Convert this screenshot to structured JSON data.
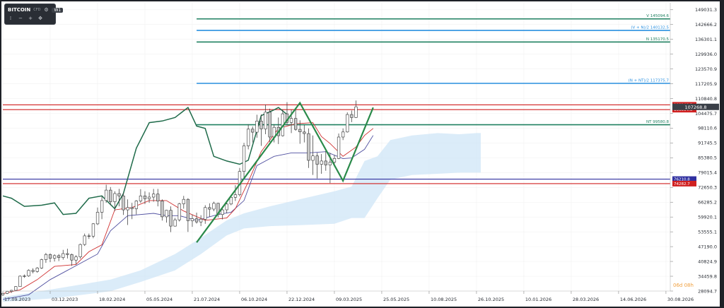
{
  "toolbar": {
    "symbol": "BITCOIN",
    "exchange": "CFD",
    "interval": "W1",
    "icons": [
      "menu-icon",
      "zoom-out-icon",
      "zoom-in-icon",
      "crosshair-icon"
    ]
  },
  "colors": {
    "bull": "#ffffff",
    "bear": "#c8c8c8",
    "wick": "#444444",
    "tenkan": "#d03030",
    "kijun": "#5050a0",
    "chikou": "#1f6b4a",
    "cloud": "#cfe6f7",
    "green_lvl": "#1f8060",
    "blue_lvl": "#2a90e0",
    "red_lvl": "#d02020",
    "navy_lvl": "#3030a0",
    "pattern": "#2a8a4a"
  },
  "chart_data": {
    "type": "candlestick",
    "symbol": "BITCOIN",
    "interval": "W1",
    "ylim": [
      28094.7,
      152000
    ],
    "y_ticks": [
      "149031.3",
      "142666.2",
      "136301.1",
      "129936.0",
      "123570.9",
      "117205.9",
      "110840.8",
      "104475.7",
      "98110.6",
      "91745.5",
      "85380.5",
      "79015.4",
      "72650.3",
      "66285.2",
      "59920.1",
      "53555.1",
      "47190.0",
      "40824.9",
      "34459.8",
      "28094.7"
    ],
    "x_ticks": [
      {
        "t": 0,
        "label": "17.09.2023"
      },
      {
        "t": 11,
        "label": "03.12.2023"
      },
      {
        "t": 22,
        "label": "18.02.2024"
      },
      {
        "t": 33,
        "label": "05.05.2024"
      },
      {
        "t": 44,
        "label": "21.07.2024"
      },
      {
        "t": 55,
        "label": "06.10.2024"
      },
      {
        "t": 66,
        "label": "22.12.2024"
      },
      {
        "t": 77,
        "label": "09.03.2025"
      },
      {
        "t": 88,
        "label": "25.05.2025"
      },
      {
        "t": 99,
        "label": "10.08.2025"
      },
      {
        "t": 110,
        "label": "26.10.2025"
      },
      {
        "t": 121,
        "label": "10.01.2026"
      },
      {
        "t": 132,
        "label": "28.03.2026"
      },
      {
        "t": 143,
        "label": "14.06.2026"
      },
      {
        "t": 154,
        "label": "30.08.2026"
      }
    ],
    "t_range": [
      0,
      155
    ],
    "candles": [
      [
        26500,
        27400,
        26100,
        27100
      ],
      [
        27100,
        28200,
        26800,
        27950
      ],
      [
        27950,
        28600,
        27300,
        28400
      ],
      [
        28400,
        30200,
        28100,
        30000
      ],
      [
        30000,
        34800,
        29900,
        34500
      ],
      [
        34500,
        35200,
        33800,
        34600
      ],
      [
        34600,
        37400,
        34200,
        37000
      ],
      [
        37000,
        37900,
        35700,
        36500
      ],
      [
        36500,
        38400,
        36000,
        38000
      ],
      [
        38000,
        42000,
        37600,
        41600
      ],
      [
        41600,
        44500,
        40200,
        43800
      ],
      [
        43800,
        44300,
        40500,
        42200
      ],
      [
        42200,
        43900,
        40800,
        43300
      ],
      [
        43300,
        44000,
        41000,
        42500
      ],
      [
        42500,
        45800,
        41600,
        44200
      ],
      [
        44200,
        46300,
        42100,
        43800
      ],
      [
        43800,
        44200,
        38900,
        41400
      ],
      [
        41400,
        43500,
        39500,
        42800
      ],
      [
        42800,
        48500,
        42000,
        48100
      ],
      [
        48100,
        52800,
        47500,
        51800
      ],
      [
        51800,
        52800,
        50500,
        51700
      ],
      [
        51700,
        57300,
        50800,
        57000
      ],
      [
        57000,
        64000,
        56500,
        62000
      ],
      [
        62000,
        69000,
        59000,
        67000
      ],
      [
        67000,
        73800,
        66000,
        71500
      ],
      [
        71500,
        72800,
        65000,
        66500
      ],
      [
        66500,
        71000,
        62500,
        70000
      ],
      [
        70000,
        72000,
        64500,
        69000
      ],
      [
        69000,
        70300,
        60800,
        63000
      ],
      [
        63000,
        67500,
        56500,
        64000
      ],
      [
        64000,
        66000,
        59000,
        63500
      ],
      [
        63500,
        67200,
        61000,
        66800
      ],
      [
        66800,
        71900,
        66000,
        69000
      ],
      [
        69000,
        71000,
        65500,
        67800
      ],
      [
        67800,
        70500,
        66000,
        68500
      ],
      [
        68500,
        72000,
        66500,
        69800
      ],
      [
        69800,
        72000,
        64500,
        66800
      ],
      [
        66800,
        67500,
        58400,
        60000
      ],
      [
        60000,
        63000,
        57500,
        62800
      ],
      [
        62800,
        64500,
        53400,
        56000
      ],
      [
        56000,
        59500,
        55800,
        58700
      ],
      [
        58700,
        66000,
        58000,
        65600
      ],
      [
        65600,
        69000,
        63500,
        67500
      ],
      [
        67500,
        68000,
        53500,
        58300
      ],
      [
        58300,
        61000,
        55700,
        59200
      ],
      [
        59200,
        61800,
        57100,
        57800
      ],
      [
        57800,
        60700,
        56000,
        59000
      ],
      [
        59000,
        65000,
        57000,
        64000
      ],
      [
        64000,
        65800,
        60000,
        63300
      ],
      [
        63300,
        66500,
        62400,
        65800
      ],
      [
        65800,
        66000,
        59800,
        61000
      ],
      [
        61000,
        64500,
        58900,
        63000
      ],
      [
        63000,
        66000,
        61500,
        65500
      ],
      [
        65500,
        69500,
        65000,
        68400
      ],
      [
        68400,
        73600,
        66800,
        69500
      ],
      [
        69500,
        81000,
        68800,
        79500
      ],
      [
        79500,
        91800,
        76500,
        90500
      ],
      [
        90500,
        99800,
        89000,
        97700
      ],
      [
        97700,
        98800,
        92000,
        96400
      ],
      [
        96400,
        103900,
        94000,
        101200
      ],
      [
        101200,
        104000,
        90500,
        97800
      ],
      [
        97800,
        108300,
        95500,
        105000
      ],
      [
        105000,
        106500,
        92200,
        94300
      ],
      [
        94300,
        99800,
        92000,
        98500
      ],
      [
        98500,
        102700,
        91300,
        94900
      ],
      [
        94900,
        106000,
        94500,
        104300
      ],
      [
        104300,
        109300,
        99500,
        100600
      ],
      [
        100600,
        106000,
        96000,
        102300
      ],
      [
        102300,
        106300,
        97000,
        97600
      ],
      [
        97600,
        101500,
        91400,
        96500
      ],
      [
        96500,
        99500,
        92000,
        95800
      ],
      [
        95800,
        98000,
        81000,
        84300
      ],
      [
        84300,
        95000,
        78000,
        86200
      ],
      [
        86200,
        87500,
        76500,
        82600
      ],
      [
        82600,
        87000,
        78500,
        84000
      ],
      [
        84000,
        88500,
        79800,
        82300
      ],
      [
        82300,
        87500,
        74500,
        83500
      ],
      [
        83500,
        86500,
        81500,
        85100
      ],
      [
        85100,
        95800,
        84800,
        94300
      ],
      [
        94300,
        98000,
        93000,
        96500
      ],
      [
        96500,
        104900,
        96200,
        104000
      ],
      [
        104000,
        105700,
        100700,
        102700
      ],
      [
        102700,
        110000,
        102500,
        107300
      ]
    ],
    "tenkan": [
      [
        0,
        27000
      ],
      [
        4,
        28600
      ],
      [
        8,
        33000
      ],
      [
        12,
        38700
      ],
      [
        17,
        39500
      ],
      [
        20,
        45000
      ],
      [
        23,
        48000
      ],
      [
        26,
        63000
      ],
      [
        30,
        64000
      ],
      [
        34,
        67000
      ],
      [
        38,
        67000
      ],
      [
        42,
        62500
      ],
      [
        47,
        58500
      ],
      [
        52,
        59500
      ],
      [
        54,
        63500
      ],
      [
        57,
        75000
      ],
      [
        60,
        88000
      ],
      [
        64,
        98000
      ],
      [
        68,
        100000
      ],
      [
        72,
        100500
      ],
      [
        74,
        94500
      ],
      [
        76,
        91500
      ],
      [
        79,
        86000
      ],
      [
        82,
        90000
      ],
      [
        84,
        95000
      ],
      [
        86,
        98000
      ]
    ],
    "kijun": [
      [
        0,
        24500
      ],
      [
        6,
        26500
      ],
      [
        11,
        33000
      ],
      [
        15,
        37000
      ],
      [
        19,
        41000
      ],
      [
        22,
        44000
      ],
      [
        25,
        54000
      ],
      [
        29,
        60500
      ],
      [
        35,
        61500
      ],
      [
        38,
        60500
      ],
      [
        41,
        60500
      ],
      [
        45,
        58500
      ],
      [
        50,
        61000
      ],
      [
        53,
        62000
      ],
      [
        56,
        67000
      ],
      [
        59,
        82000
      ],
      [
        63,
        86000
      ],
      [
        67,
        87500
      ],
      [
        71,
        87500
      ],
      [
        75,
        88000
      ],
      [
        79,
        85000
      ],
      [
        81,
        85300
      ],
      [
        84,
        89000
      ],
      [
        86,
        95000
      ]
    ],
    "chikou": [
      [
        0,
        69000
      ],
      [
        2,
        68000
      ],
      [
        5,
        64500
      ],
      [
        9,
        65000
      ],
      [
        12,
        66000
      ],
      [
        14,
        61000
      ],
      [
        17,
        61500
      ],
      [
        20,
        68000
      ],
      [
        23,
        69000
      ],
      [
        26,
        63500
      ],
      [
        28,
        70000
      ],
      [
        31,
        89500
      ],
      [
        34,
        100500
      ],
      [
        37,
        101200
      ],
      [
        40,
        102700
      ],
      [
        43,
        107000
      ],
      [
        45,
        99000
      ],
      [
        47,
        98000
      ],
      [
        49,
        86000
      ],
      [
        52,
        84000
      ],
      [
        55,
        82600
      ],
      [
        57,
        84300
      ],
      [
        60,
        103500
      ],
      [
        63,
        106000
      ],
      [
        64,
        107000
      ],
      [
        66,
        104000
      ]
    ],
    "cloud_top": [
      [
        0,
        25500
      ],
      [
        12,
        29000
      ],
      [
        25,
        33000
      ],
      [
        32,
        37000
      ],
      [
        40,
        44000
      ],
      [
        46,
        51000
      ],
      [
        52,
        58500
      ],
      [
        56,
        61500
      ],
      [
        62,
        64500
      ],
      [
        70,
        68000
      ],
      [
        77,
        71000
      ],
      [
        81,
        73000
      ],
      [
        84,
        84000
      ],
      [
        87,
        86000
      ],
      [
        90,
        93000
      ],
      [
        95,
        95000
      ],
      [
        101,
        96000
      ],
      [
        106,
        95500
      ],
      [
        110,
        96000
      ],
      [
        111,
        96000
      ]
    ],
    "cloud_bottom": [
      [
        0,
        23500
      ],
      [
        12,
        25000
      ],
      [
        25,
        28000
      ],
      [
        32,
        32000
      ],
      [
        40,
        37000
      ],
      [
        46,
        44000
      ],
      [
        52,
        52000
      ],
      [
        56,
        55000
      ],
      [
        62,
        56000
      ],
      [
        70,
        56500
      ],
      [
        77,
        57000
      ],
      [
        81,
        59500
      ],
      [
        84,
        59500
      ],
      [
        87,
        68000
      ],
      [
        90,
        76000
      ],
      [
        95,
        78000
      ],
      [
        101,
        78500
      ],
      [
        106,
        79000
      ],
      [
        110,
        79000
      ],
      [
        111,
        79000
      ]
    ],
    "pattern": [
      [
        45,
        49000
      ],
      [
        69,
        109000
      ],
      [
        79,
        75500
      ],
      [
        86,
        107000
      ]
    ],
    "levels": [
      {
        "label": "V 145094.6",
        "value": 145094.6,
        "color": "green",
        "t_start": 45
      },
      {
        "label": "(V + N)/2 140132.5",
        "value": 140132.5,
        "color": "blue",
        "t_start": 45
      },
      {
        "label": "N 135170.5",
        "value": 135170.5,
        "color": "green",
        "t_start": 45
      },
      {
        "label": "(N + NT)/2 117375.7",
        "value": 117375.7,
        "color": "blue",
        "t_start": 45
      },
      {
        "label": "NT 99580.8",
        "value": 99580.8,
        "color": "green",
        "t_start": 45
      }
    ],
    "hlines": [
      {
        "label": "108146.5",
        "value": 108146.5,
        "color": "red"
      },
      {
        "label": "106094.6",
        "value": 106094.6,
        "color": "red"
      },
      {
        "label": "76210.8",
        "value": 76210.8,
        "color": "navy"
      },
      {
        "label": "74282.7",
        "value": 74282.7,
        "color": "red"
      }
    ],
    "last_price": {
      "label": "107268.8",
      "value": 107268.8
    },
    "watermark": "06d 08h"
  }
}
